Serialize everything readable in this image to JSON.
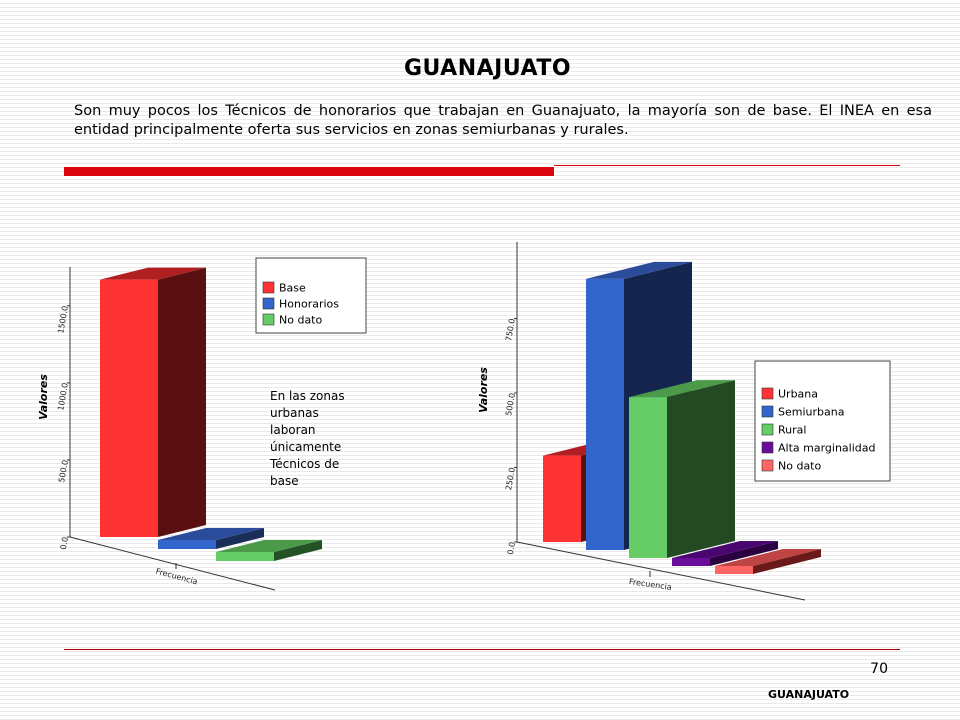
{
  "slide": {
    "title": "GUANAJUATO",
    "intro": "Son muy pocos los Técnicos de honorarios que trabajan en Guanajuato, la mayoría son de base. El INEA en esa entidad principalmente oferta sus servicios en zonas semiurbanas y rurales.",
    "note": "En las zonas urbanas laboran únicamente Técnicos de base",
    "page_number": "70",
    "footer": "GUANAJUATO"
  },
  "colors": {
    "accent_red": "#d8050c",
    "rule_red": "#b30006"
  },
  "chart_data": [
    {
      "type": "bar",
      "style": "3d",
      "ylabel": "Valores",
      "xlabel": "",
      "xtick": "Frecuencia",
      "yticks": [
        "0.0",
        "500.0",
        "1000.0",
        "1500.0"
      ],
      "ylim": [
        0,
        1700
      ],
      "legend": "top-right",
      "series": [
        {
          "name": "Base",
          "value": 1670,
          "front": "#ff3333",
          "side": "#5a1010",
          "top": "#b01f22"
        },
        {
          "name": "Honorarios",
          "value": 55,
          "front": "#3366cc",
          "side": "#1a2e5a",
          "top": "#2a4c9a"
        },
        {
          "name": "No dato",
          "value": 12,
          "front": "#66cc66",
          "side": "#255225",
          "top": "#4a9a4a"
        }
      ]
    },
    {
      "type": "bar",
      "style": "3d",
      "ylabel": "Valores",
      "xlabel": "",
      "xtick": "Frecuencia",
      "yticks": [
        "0.0",
        "250.0",
        "500.0",
        "750.0"
      ],
      "ylim": [
        0,
        980
      ],
      "legend": "right",
      "series": [
        {
          "name": "Urbana",
          "value": 290,
          "front": "#ff3333",
          "side": "#5a1010",
          "top": "#b01f22"
        },
        {
          "name": "Semiurbana",
          "value": 910,
          "front": "#3366cc",
          "side": "#14264f",
          "top": "#2a4c9a"
        },
        {
          "name": "Rural",
          "value": 540,
          "front": "#66cc66",
          "side": "#234a23",
          "top": "#4a9a4a"
        },
        {
          "name": "Alta marginalidad",
          "value": 20,
          "front": "#6a0d9a",
          "side": "#2a0040",
          "top": "#4a0670"
        },
        {
          "name": "No dato",
          "value": 18,
          "front": "#ff6666",
          "side": "#6a1a1a",
          "top": "#c04444"
        }
      ]
    }
  ]
}
